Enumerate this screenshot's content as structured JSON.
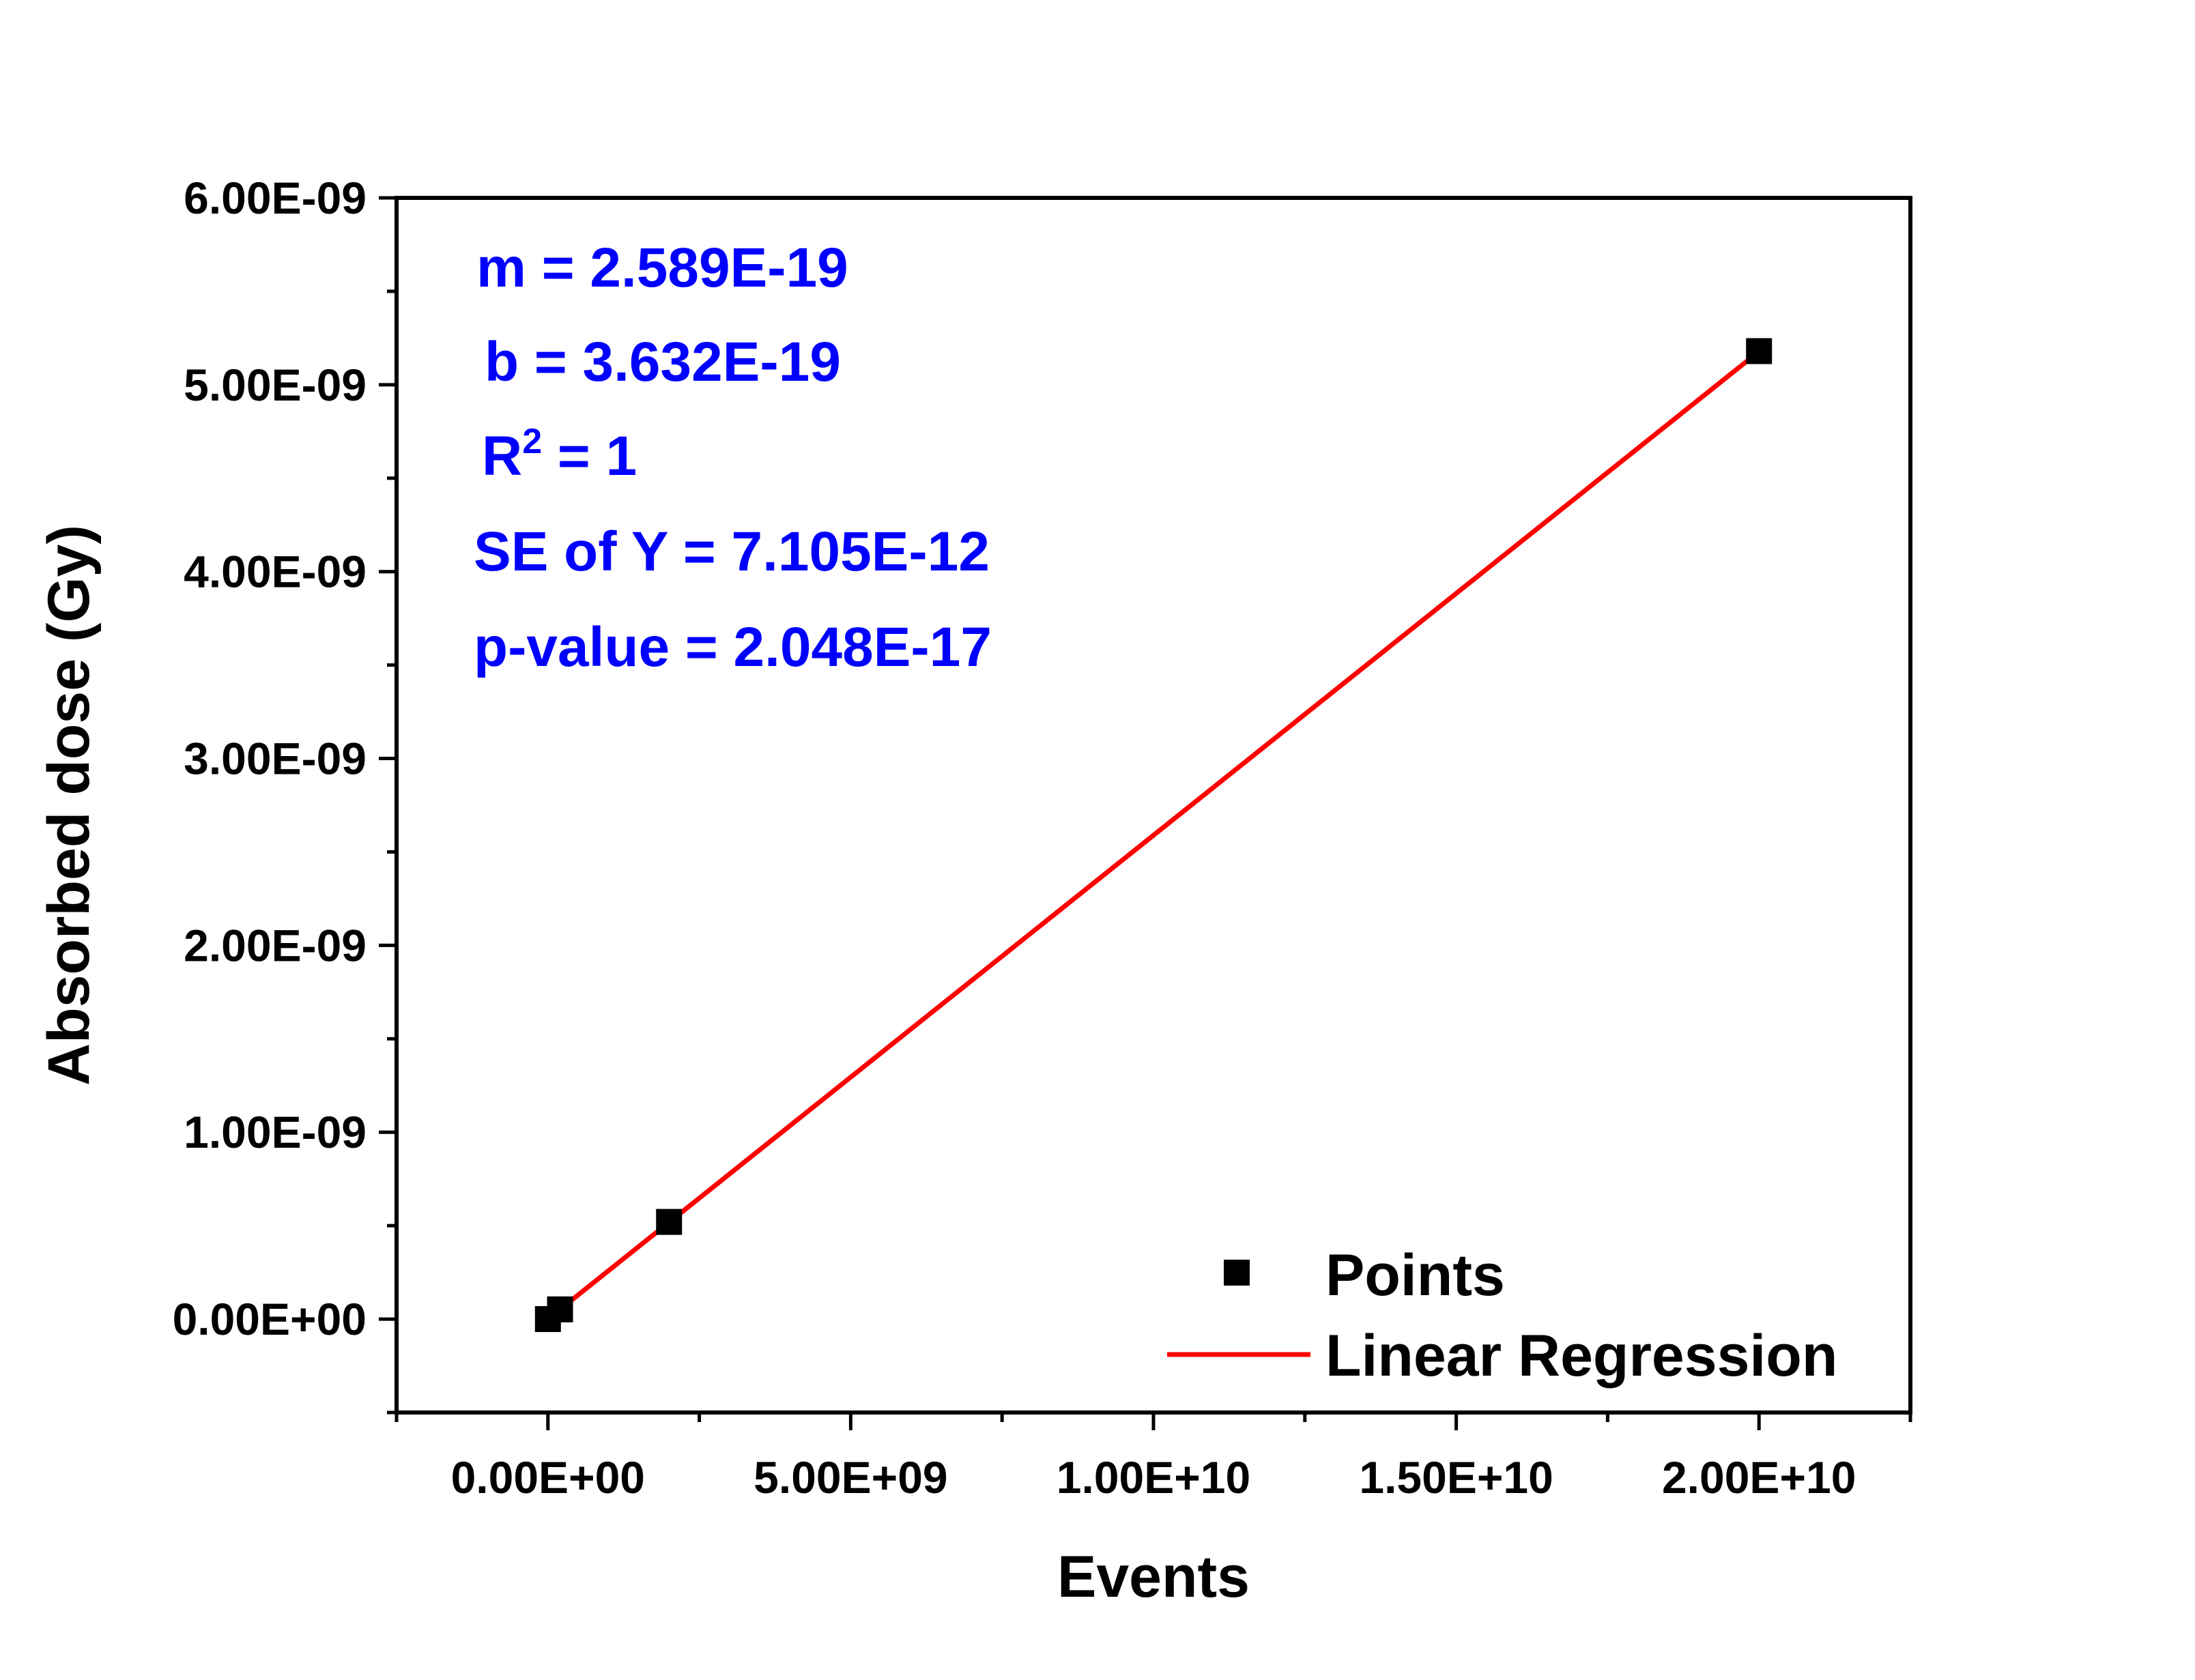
{
  "chart_data": {
    "type": "scatter",
    "xlabel": "Events",
    "ylabel": "Absorbed dose (Gy)",
    "xlim": [
      -2500000000.0,
      22500000000.0
    ],
    "ylim": [
      -5e-10,
      6e-09
    ],
    "x_ticks": [
      0,
      5000000000.0,
      10000000000.0,
      15000000000.0,
      20000000000.0
    ],
    "x_tick_labels": [
      "0.00E+00",
      "5.00E+09",
      "1.00E+10",
      "1.50E+10",
      "2.00E+10"
    ],
    "y_ticks": [
      0,
      1e-09,
      2e-09,
      3e-09,
      4e-09,
      5e-09,
      6e-09
    ],
    "y_tick_labels": [
      "0.00E+00",
      "1.00E-09",
      "2.00E-09",
      "3.00E-09",
      "4.00E-09",
      "5.00E-09",
      "6.00E-09"
    ],
    "series": [
      {
        "name": "Points",
        "kind": "scatter",
        "color": "#000000",
        "marker": "square",
        "x": [
          0,
          200000000.0,
          2000000000.0,
          20000000000.0
        ],
        "y": [
          0,
          5.2e-11,
          5.2e-10,
          5.18e-09
        ]
      },
      {
        "name": "Linear Regression",
        "kind": "line",
        "color": "#ff0000",
        "x": [
          0,
          20000000000.0
        ],
        "y": [
          3.632e-19,
          5.178e-09
        ]
      }
    ],
    "annotations": {
      "color": "#0000ff",
      "m_text": "m = 2.589E-19",
      "b_text": "b = 3.632E-19",
      "r2_prefix": "R",
      "r2_sup": "2",
      "r2_suffix": " = 1",
      "se_text": "SE of Y = 7.105E-12",
      "p_text": "p-value = 2.048E-17"
    },
    "legend": {
      "position": "bottom-right",
      "entries": [
        "Points",
        "Linear Regression"
      ]
    },
    "grid": false
  }
}
